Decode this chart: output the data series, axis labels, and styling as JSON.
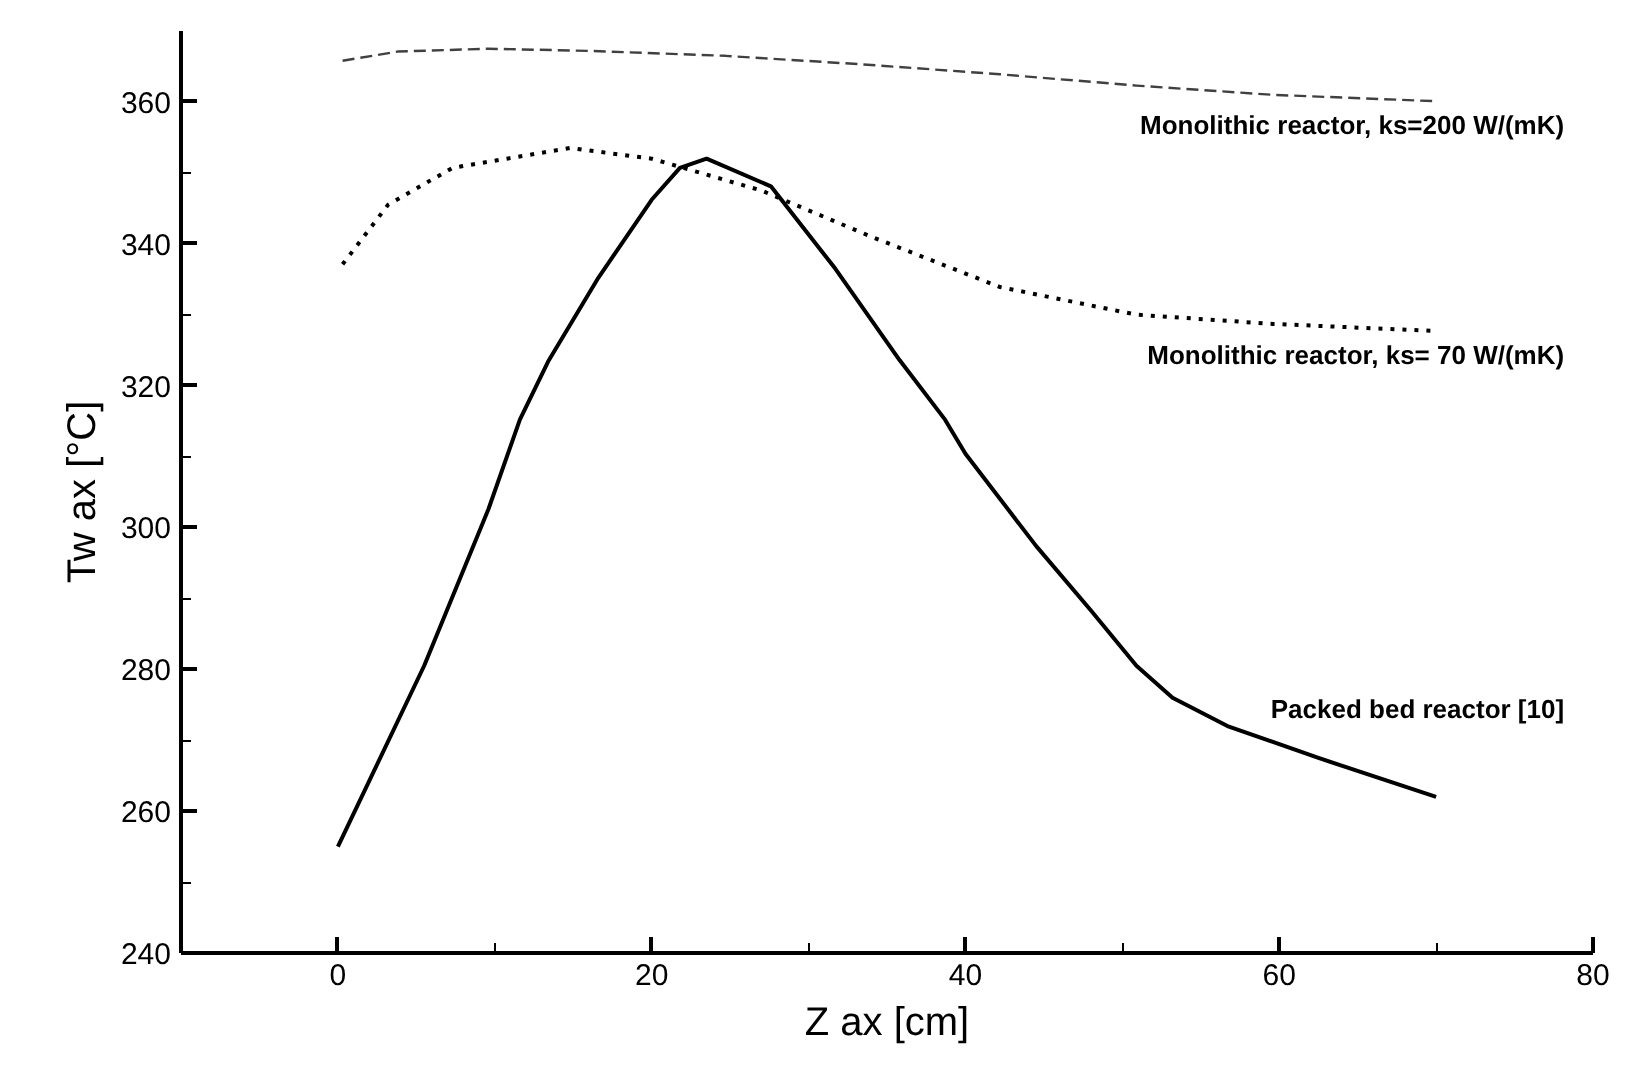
{
  "chart_data": {
    "type": "line",
    "xlabel": "Z ax [cm]",
    "ylabel": "Tw ax [°C]",
    "xlim": [
      -10,
      80
    ],
    "ylim": [
      240,
      370
    ],
    "xticks": [
      0,
      {
        "value": 10,
        "label": null
      },
      20,
      {
        "value": 30,
        "label": null
      },
      40,
      {
        "value": 50,
        "label": null
      },
      60,
      {
        "value": 70,
        "label": null
      },
      80
    ],
    "yticks": [
      240,
      {
        "value": 250,
        "label": null
      },
      260,
      {
        "value": 270,
        "label": null
      },
      280,
      {
        "value": 290,
        "label": null
      },
      300,
      {
        "value": 310,
        "label": null
      },
      320,
      {
        "value": 330,
        "label": null
      },
      340,
      {
        "value": 350,
        "label": null
      },
      360
    ],
    "grid": false,
    "series": [
      {
        "name": "Packed bed reactor [10]",
        "color": "#000000",
        "line_style": "solid",
        "x": [
          0,
          5.5,
          9.6,
          11.6,
          13.4,
          16.6,
          20,
          21.8,
          23.5,
          27.6,
          31.7,
          35.8,
          38.7,
          40,
          44.5,
          48,
          50.9,
          53.2,
          56.7,
          62.5,
          70
        ],
        "values": [
          255,
          280.5,
          302.6,
          315.2,
          323.4,
          335.2,
          346.2,
          350.7,
          352,
          348.1,
          336.5,
          323.6,
          315.2,
          310.4,
          297.4,
          288.3,
          280.5,
          276,
          272,
          267.5,
          262
        ]
      },
      {
        "name": "Monolithic reactor, ks= 70 W/(mK)",
        "color": "#000000",
        "line_style": "dotted",
        "x": [
          0.3,
          3.2,
          7.3,
          14.8,
          20,
          27,
          34,
          42.2,
          50.9,
          59.6,
          70
        ],
        "values": [
          337.1,
          345.5,
          350.7,
          353.5,
          352,
          347.5,
          341,
          333.9,
          330,
          328.7,
          327.7
        ]
      },
      {
        "name": "Monolithic reactor, ks=200 W/(mK)",
        "color": "#404040",
        "line_style": "dashed",
        "x": [
          0.3,
          3.8,
          9.6,
          16,
          24.7,
          33.4,
          42.2,
          50.9,
          59.6,
          70
        ],
        "values": [
          365.8,
          367.1,
          367.5,
          367.2,
          366.5,
          365.3,
          363.9,
          362.3,
          361,
          360.1
        ]
      }
    ]
  }
}
